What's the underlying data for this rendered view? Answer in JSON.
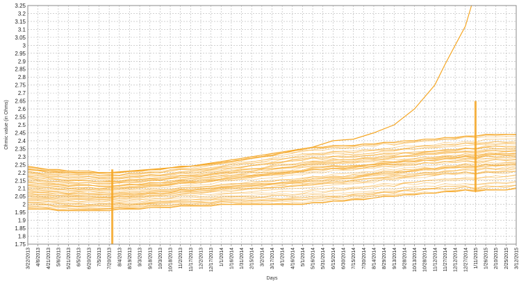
{
  "chart_data": {
    "type": "line",
    "title": "",
    "xlabel": "Days",
    "ylabel": "Ohmic value (in Ohms)",
    "ylim": [
      1.75,
      3.25
    ],
    "y_ticks": [
      "1.75",
      "1.8",
      "1.85",
      "1.9",
      "1.95",
      "2",
      "2.05",
      "2.1",
      "2.15",
      "2.2",
      "2.25",
      "2.3",
      "2.35",
      "2.4",
      "2.45",
      "2.5",
      "2.55",
      "2.6",
      "2.65",
      "2.7",
      "2.75",
      "2.8",
      "2.85",
      "2.9",
      "2.95",
      "3",
      "3.05",
      "3.1",
      "3.15",
      "3.2",
      "3.25"
    ],
    "x_ticks": [
      "3/22/2013",
      "4/6/2013",
      "4/21/2013",
      "5/6/2013",
      "5/21/2013",
      "6/5/2013",
      "6/20/2013",
      "7/5/2013",
      "7/20/2013",
      "8/4/2013",
      "8/19/2013",
      "9/3/2013",
      "9/18/2013",
      "10/3/2013",
      "10/18/2013",
      "11/2/2013",
      "11/17/2013",
      "12/2/2013",
      "12/17/2013",
      "1/1/2014",
      "1/16/2014",
      "1/31/2014",
      "2/15/2014",
      "3/2/2014",
      "3/17/2014",
      "4/1/2014",
      "4/16/2014",
      "5/1/2014",
      "5/16/2014",
      "5/31/2014",
      "6/15/2014",
      "6/30/2014",
      "7/15/2014",
      "7/30/2014",
      "8/14/2014",
      "8/29/2014",
      "9/13/2014",
      "9/28/2014",
      "10/13/2014",
      "10/28/2014",
      "11/12/2014",
      "11/27/2014",
      "12/12/2014",
      "12/27/2014",
      "1/11/2015",
      "1/26/2015",
      "2/10/2015",
      "2/25/2015",
      "3/12/2015"
    ],
    "grid": true,
    "legend": "none",
    "series_color": "#F5A623",
    "band": {
      "description_values": "upper/lower envelope of the many cell traces at each x tick",
      "upper": [
        2.24,
        2.23,
        2.22,
        2.22,
        2.21,
        2.21,
        2.21,
        2.2,
        2.2,
        2.2,
        2.21,
        2.21,
        2.22,
        2.22,
        2.23,
        2.24,
        2.24,
        2.25,
        2.26,
        2.27,
        2.28,
        2.29,
        2.3,
        2.31,
        2.32,
        2.33,
        2.34,
        2.35,
        2.36,
        2.36,
        2.37,
        2.37,
        2.37,
        2.38,
        2.38,
        2.39,
        2.39,
        2.4,
        2.4,
        2.41,
        2.41,
        2.42,
        2.42,
        2.43,
        2.43,
        2.44,
        2.44,
        2.44,
        2.44
      ],
      "lower": [
        1.97,
        1.97,
        1.97,
        1.96,
        1.96,
        1.96,
        1.96,
        1.96,
        1.96,
        1.97,
        1.97,
        1.97,
        1.98,
        1.98,
        1.98,
        1.99,
        1.99,
        1.99,
        1.99,
        2.0,
        2.0,
        2.0,
        2.0,
        2.0,
        2.0,
        2.0,
        2.0,
        2.0,
        2.01,
        2.01,
        2.02,
        2.02,
        2.03,
        2.03,
        2.04,
        2.05,
        2.05,
        2.06,
        2.06,
        2.07,
        2.07,
        2.08,
        2.08,
        2.09,
        2.08,
        2.09,
        2.09,
        2.09,
        2.1
      ]
    },
    "outlier_series": {
      "x_index": [
        0,
        4,
        8,
        12,
        16,
        20,
        24,
        28,
        30,
        32,
        34,
        36,
        38,
        40,
        41,
        42,
        43,
        43.6
      ],
      "values": [
        2.22,
        2.2,
        2.2,
        2.22,
        2.24,
        2.27,
        2.31,
        2.36,
        2.4,
        2.41,
        2.45,
        2.5,
        2.6,
        2.75,
        2.88,
        3.0,
        3.12,
        3.25
      ]
    },
    "spike_events": [
      {
        "x_index": 8.3,
        "low": 1.75,
        "high": 2.22
      },
      {
        "x_index": 44.0,
        "low": 2.08,
        "high": 2.65
      }
    ]
  }
}
